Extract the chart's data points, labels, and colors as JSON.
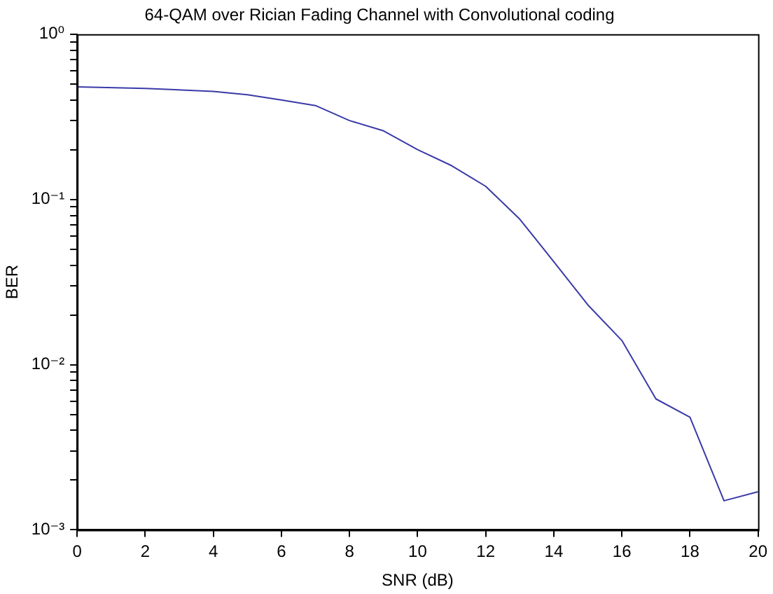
{
  "chart_data": {
    "type": "line",
    "title": "64-QAM over Rician Fading Channel with Convolutional coding",
    "xlabel": "SNR (dB)",
    "ylabel": "BER",
    "x": [
      0,
      2,
      4,
      5,
      6,
      7,
      8,
      9,
      10,
      11,
      12,
      13,
      14,
      15,
      16,
      17,
      18,
      19,
      20
    ],
    "series": [
      {
        "color": "#3a3aa8",
        "values": [
          0.48,
          0.47,
          0.45,
          0.43,
          0.4,
          0.37,
          0.3,
          0.26,
          0.2,
          0.16,
          0.12,
          0.076,
          0.042,
          0.023,
          0.014,
          0.0062,
          0.0048,
          0.0015,
          0.0017
        ]
      }
    ],
    "log": "y",
    "xlim": [
      0,
      20
    ],
    "xticks": [
      0,
      2,
      4,
      6,
      8,
      10,
      12,
      14,
      16,
      18,
      20
    ],
    "ylim": [
      0.001,
      1
    ],
    "yticks": [
      {
        "value": 0.001,
        "label": "10⁻³"
      },
      {
        "value": 0.002,
        "label": null
      },
      {
        "value": 0.003,
        "label": null
      },
      {
        "value": 0.004,
        "label": null
      },
      {
        "value": 0.005,
        "label": null
      },
      {
        "value": 0.006,
        "label": null
      },
      {
        "value": 0.007,
        "label": null
      },
      {
        "value": 0.008,
        "label": null
      },
      {
        "value": 0.009,
        "label": null
      },
      {
        "value": 0.01,
        "label": "10⁻²"
      },
      {
        "value": 0.02,
        "label": null
      },
      {
        "value": 0.03,
        "label": null
      },
      {
        "value": 0.04,
        "label": null
      },
      {
        "value": 0.05,
        "label": null
      },
      {
        "value": 0.06,
        "label": null
      },
      {
        "value": 0.07,
        "label": null
      },
      {
        "value": 0.08,
        "label": null
      },
      {
        "value": 0.09,
        "label": null
      },
      {
        "value": 0.1,
        "label": "10⁻¹"
      },
      {
        "value": 0.2,
        "label": null
      },
      {
        "value": 0.3,
        "label": null
      },
      {
        "value": 0.4,
        "label": null
      },
      {
        "value": 0.5,
        "label": null
      },
      {
        "value": 0.6,
        "label": null
      },
      {
        "value": 0.7,
        "label": null
      },
      {
        "value": 0.8,
        "label": null
      },
      {
        "value": 0.9,
        "label": null
      },
      {
        "value": 1,
        "label": "10⁰"
      }
    ],
    "grid": false,
    "legend": false,
    "marker": "none",
    "line_style": "solid"
  }
}
